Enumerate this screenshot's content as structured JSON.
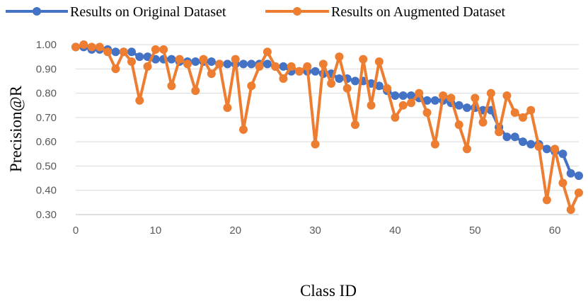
{
  "chart_data": {
    "type": "line",
    "title": "",
    "xlabel": "Class ID",
    "ylabel": "Precision@R",
    "xlim": [
      0,
      63
    ],
    "ylim": [
      0.3,
      1.0
    ],
    "x_ticks": [
      0,
      10,
      20,
      30,
      40,
      50,
      60
    ],
    "y_ticks": [
      "0.30",
      "0.40",
      "0.50",
      "0.60",
      "0.70",
      "0.80",
      "0.90",
      "1.00"
    ],
    "grid": true,
    "legend_position": "top",
    "series": [
      {
        "name": "Results on Original Dataset",
        "color": "#4472C4",
        "values": [
          0.99,
          0.99,
          0.98,
          0.98,
          0.98,
          0.97,
          0.97,
          0.97,
          0.95,
          0.95,
          0.94,
          0.94,
          0.94,
          0.93,
          0.93,
          0.93,
          0.93,
          0.93,
          0.92,
          0.92,
          0.92,
          0.92,
          0.92,
          0.92,
          0.92,
          0.91,
          0.91,
          0.89,
          0.89,
          0.89,
          0.89,
          0.88,
          0.88,
          0.86,
          0.86,
          0.85,
          0.85,
          0.84,
          0.83,
          0.81,
          0.79,
          0.79,
          0.79,
          0.78,
          0.77,
          0.77,
          0.77,
          0.76,
          0.75,
          0.74,
          0.74,
          0.73,
          0.73,
          0.66,
          0.62,
          0.62,
          0.6,
          0.59,
          0.59,
          0.57,
          0.56,
          0.55,
          0.47,
          0.46
        ]
      },
      {
        "name": "Results on Augmented Dataset",
        "color": "#ED7D31",
        "values": [
          0.99,
          1.0,
          0.99,
          0.99,
          0.97,
          0.9,
          0.97,
          0.93,
          0.77,
          0.91,
          0.98,
          0.98,
          0.83,
          0.94,
          0.92,
          0.81,
          0.94,
          0.88,
          0.92,
          0.74,
          0.94,
          0.65,
          0.83,
          0.91,
          0.97,
          0.91,
          0.86,
          0.91,
          0.89,
          0.91,
          0.59,
          0.92,
          0.84,
          0.95,
          0.82,
          0.67,
          0.94,
          0.75,
          0.93,
          0.82,
          0.7,
          0.75,
          0.76,
          0.8,
          0.72,
          0.59,
          0.79,
          0.78,
          0.67,
          0.57,
          0.78,
          0.68,
          0.8,
          0.64,
          0.79,
          0.72,
          0.7,
          0.73,
          0.58,
          0.36,
          0.57,
          0.43,
          0.32,
          0.39
        ]
      }
    ]
  }
}
